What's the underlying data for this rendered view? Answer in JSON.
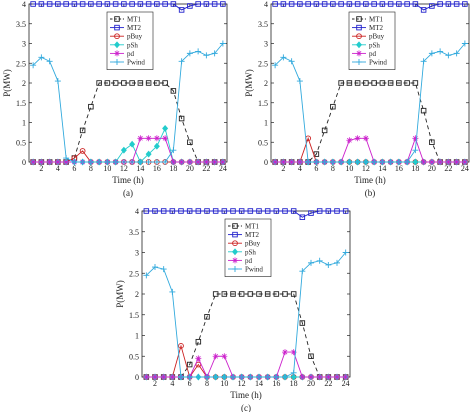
{
  "chart_data": [
    {
      "type": "line",
      "panel_label": "(a)",
      "xlabel": "Time (h)",
      "ylabel": "P(MW)",
      "xlim": [
        0.5,
        24.5
      ],
      "ylim": [
        0,
        4
      ],
      "xticks": [
        2,
        4,
        6,
        8,
        10,
        12,
        14,
        16,
        18,
        20,
        22,
        24
      ],
      "yticks": [
        0,
        0.5,
        1,
        1.5,
        2,
        2.5,
        3,
        3.5,
        4
      ],
      "ytick_labels": [
        "0",
        "0.5",
        "1",
        "1.5",
        "2",
        "2.5",
        "3",
        "3.5",
        "4"
      ],
      "legend_position": "top-center",
      "x": [
        1,
        2,
        3,
        4,
        5,
        6,
        7,
        8,
        9,
        10,
        11,
        12,
        13,
        14,
        15,
        16,
        17,
        18,
        19,
        20,
        21,
        22,
        23,
        24
      ],
      "series": [
        {
          "name": "MT1",
          "color": "#222222",
          "dash": "4,3",
          "marker": "square",
          "values": [
            0,
            0,
            0,
            0,
            0,
            0.1,
            0.8,
            1.4,
            2,
            2,
            2,
            2,
            2,
            2,
            2,
            2,
            2,
            1.8,
            1.1,
            0.5,
            0,
            0,
            0,
            0
          ]
        },
        {
          "name": "MT2",
          "color": "#2222cc",
          "dash": "",
          "marker": "square",
          "values": [
            4,
            4,
            4,
            4,
            4,
            4,
            4,
            4,
            4,
            4,
            4,
            4,
            4,
            4,
            4,
            4,
            4,
            4,
            3.85,
            3.95,
            4,
            4,
            4,
            4
          ]
        },
        {
          "name": "pBuy",
          "color": "#cc2222",
          "dash": "",
          "marker": "circle",
          "values": [
            0,
            0,
            0,
            0,
            0,
            0.1,
            0.28,
            0,
            0,
            0,
            0,
            0,
            0,
            0,
            0,
            0,
            0,
            0,
            0,
            0,
            0,
            0,
            0,
            0
          ]
        },
        {
          "name": "pSh",
          "color": "#22cccc",
          "dash": "",
          "marker": "diamond",
          "values": [
            0,
            0,
            0,
            0,
            0,
            0,
            0,
            0,
            0,
            0,
            0,
            0.3,
            0.45,
            0,
            0.2,
            0.4,
            0.85,
            0,
            0,
            0,
            0,
            0,
            0,
            0
          ]
        },
        {
          "name": "pd",
          "color": "#cc22cc",
          "dash": "",
          "marker": "star",
          "values": [
            0,
            0,
            0,
            0,
            0,
            0,
            0,
            0,
            0,
            0,
            0,
            0,
            0,
            0.6,
            0.6,
            0.6,
            0.6,
            0,
            0,
            0,
            0,
            0,
            0,
            0
          ]
        },
        {
          "name": "Pwind",
          "color": "#33aadd",
          "dash": "",
          "marker": "plus",
          "values": [
            2.45,
            2.65,
            2.55,
            2.05,
            0.1,
            0,
            0,
            0,
            0,
            0,
            0,
            0,
            0,
            0,
            0,
            0,
            0,
            0.3,
            2.55,
            2.75,
            2.8,
            2.7,
            2.75,
            3
          ]
        }
      ]
    },
    {
      "type": "line",
      "panel_label": "(b)",
      "xlabel": "Time (h)",
      "ylabel": "P(MW)",
      "xlim": [
        0.5,
        24.5
      ],
      "ylim": [
        0,
        4
      ],
      "xticks": [
        2,
        4,
        6,
        8,
        10,
        12,
        14,
        16,
        18,
        20,
        22,
        24
      ],
      "yticks": [
        0,
        0.5,
        1,
        1.5,
        2,
        2.5,
        3,
        3.5,
        4
      ],
      "ytick_labels": [
        "0",
        "0.5",
        "1",
        "1.5",
        "2",
        "2.5",
        "3",
        "3.5",
        "4"
      ],
      "legend_position": "top-center",
      "x": [
        1,
        2,
        3,
        4,
        5,
        6,
        7,
        8,
        9,
        10,
        11,
        12,
        13,
        14,
        15,
        16,
        17,
        18,
        19,
        20,
        21,
        22,
        23,
        24
      ],
      "series": [
        {
          "name": "MT1",
          "color": "#222222",
          "dash": "4,3",
          "marker": "square",
          "values": [
            0,
            0,
            0,
            0,
            0,
            0.2,
            0.8,
            1.4,
            2,
            2,
            2,
            2,
            2,
            2,
            2,
            2,
            2,
            2,
            1.3,
            0.5,
            0,
            0,
            0,
            0
          ]
        },
        {
          "name": "MT2",
          "color": "#2222cc",
          "dash": "",
          "marker": "square",
          "values": [
            4,
            4,
            4,
            4,
            4,
            4,
            4,
            4,
            4,
            4,
            4,
            4,
            4,
            4,
            4,
            4,
            4,
            4,
            3.85,
            3.95,
            4,
            4,
            4,
            4
          ]
        },
        {
          "name": "pBuy",
          "color": "#cc2222",
          "dash": "",
          "marker": "circle",
          "values": [
            0,
            0,
            0,
            0,
            0.6,
            0,
            0,
            0,
            0,
            0,
            0,
            0,
            0,
            0,
            0,
            0,
            0,
            0,
            0,
            0,
            0,
            0,
            0,
            0
          ]
        },
        {
          "name": "pSh",
          "color": "#22cccc",
          "dash": "",
          "marker": "diamond",
          "values": [
            0,
            0,
            0,
            0,
            0,
            0,
            0,
            0,
            0,
            0,
            0,
            0,
            0,
            0,
            0,
            0,
            0,
            0,
            0,
            0,
            0,
            0,
            0,
            0
          ]
        },
        {
          "name": "pd",
          "color": "#cc22cc",
          "dash": "",
          "marker": "star",
          "values": [
            0,
            0,
            0,
            0,
            0,
            0,
            0,
            0,
            0,
            0.55,
            0.6,
            0.6,
            0,
            0,
            0,
            0,
            0,
            0.6,
            0,
            0,
            0,
            0,
            0,
            0
          ]
        },
        {
          "name": "Pwind",
          "color": "#33aadd",
          "dash": "",
          "marker": "plus",
          "values": [
            2.45,
            2.65,
            2.55,
            2.05,
            0,
            0,
            0,
            0,
            0,
            0,
            0,
            0,
            0,
            0,
            0,
            0,
            0,
            0.3,
            2.55,
            2.75,
            2.8,
            2.7,
            2.75,
            3
          ]
        }
      ]
    },
    {
      "type": "line",
      "panel_label": "(c)",
      "xlabel": "Time (h)",
      "ylabel": "P(MW)",
      "xlim": [
        0.5,
        24.5
      ],
      "ylim": [
        0,
        4
      ],
      "xticks": [
        2,
        4,
        6,
        8,
        10,
        12,
        14,
        16,
        18,
        20,
        22,
        24
      ],
      "yticks": [
        0,
        0.5,
        1,
        1.5,
        2,
        2.5,
        3,
        3.5,
        4
      ],
      "ytick_labels": [
        "0",
        "0.5",
        "1",
        "1.5",
        "2",
        "2.5",
        "3",
        "3.5",
        "4"
      ],
      "legend_position": "top-center",
      "x": [
        1,
        2,
        3,
        4,
        5,
        6,
        7,
        8,
        9,
        10,
        11,
        12,
        13,
        14,
        15,
        16,
        17,
        18,
        19,
        20,
        21,
        22,
        23,
        24
      ],
      "series": [
        {
          "name": "MT1",
          "color": "#222222",
          "dash": "4,3",
          "marker": "square",
          "values": [
            0,
            0,
            0,
            0,
            0,
            0.3,
            0.85,
            1.45,
            2,
            2,
            2,
            2,
            2,
            2,
            2,
            2,
            2,
            2,
            1.3,
            0.5,
            0,
            0,
            0,
            0
          ]
        },
        {
          "name": "MT2",
          "color": "#2222cc",
          "dash": "",
          "marker": "square",
          "values": [
            4,
            4,
            4,
            4,
            4,
            4,
            4,
            4,
            4,
            4,
            4,
            4,
            4,
            4,
            4,
            4,
            4,
            4,
            3.85,
            3.95,
            4,
            4,
            4,
            4
          ]
        },
        {
          "name": "pBuy",
          "color": "#cc2222",
          "dash": "",
          "marker": "circle",
          "values": [
            0,
            0,
            0,
            0,
            0.75,
            0,
            0.3,
            0,
            0,
            0,
            0,
            0,
            0,
            0,
            0,
            0,
            0,
            0,
            0,
            0,
            0,
            0,
            0,
            0
          ]
        },
        {
          "name": "pSh",
          "color": "#22cccc",
          "dash": "",
          "marker": "diamond",
          "values": [
            0,
            0,
            0,
            0,
            0,
            0,
            0,
            0,
            0,
            0,
            0,
            0,
            0,
            0,
            0,
            0,
            0,
            0,
            0,
            0,
            0,
            0,
            0,
            0
          ]
        },
        {
          "name": "pd",
          "color": "#cc22cc",
          "dash": "",
          "marker": "star",
          "values": [
            0,
            0,
            0,
            0,
            0,
            0,
            0.45,
            0,
            0.5,
            0.5,
            0,
            0,
            0,
            0,
            0,
            0,
            0.6,
            0.6,
            0,
            0,
            0,
            0,
            0,
            0
          ]
        },
        {
          "name": "Pwind",
          "color": "#33aadd",
          "dash": "",
          "marker": "plus",
          "values": [
            2.45,
            2.65,
            2.6,
            2.05,
            0,
            0,
            0,
            0,
            0,
            0,
            0,
            0,
            0,
            0,
            0,
            0,
            0,
            0.1,
            2.55,
            2.75,
            2.8,
            2.7,
            2.75,
            3
          ]
        }
      ]
    }
  ]
}
